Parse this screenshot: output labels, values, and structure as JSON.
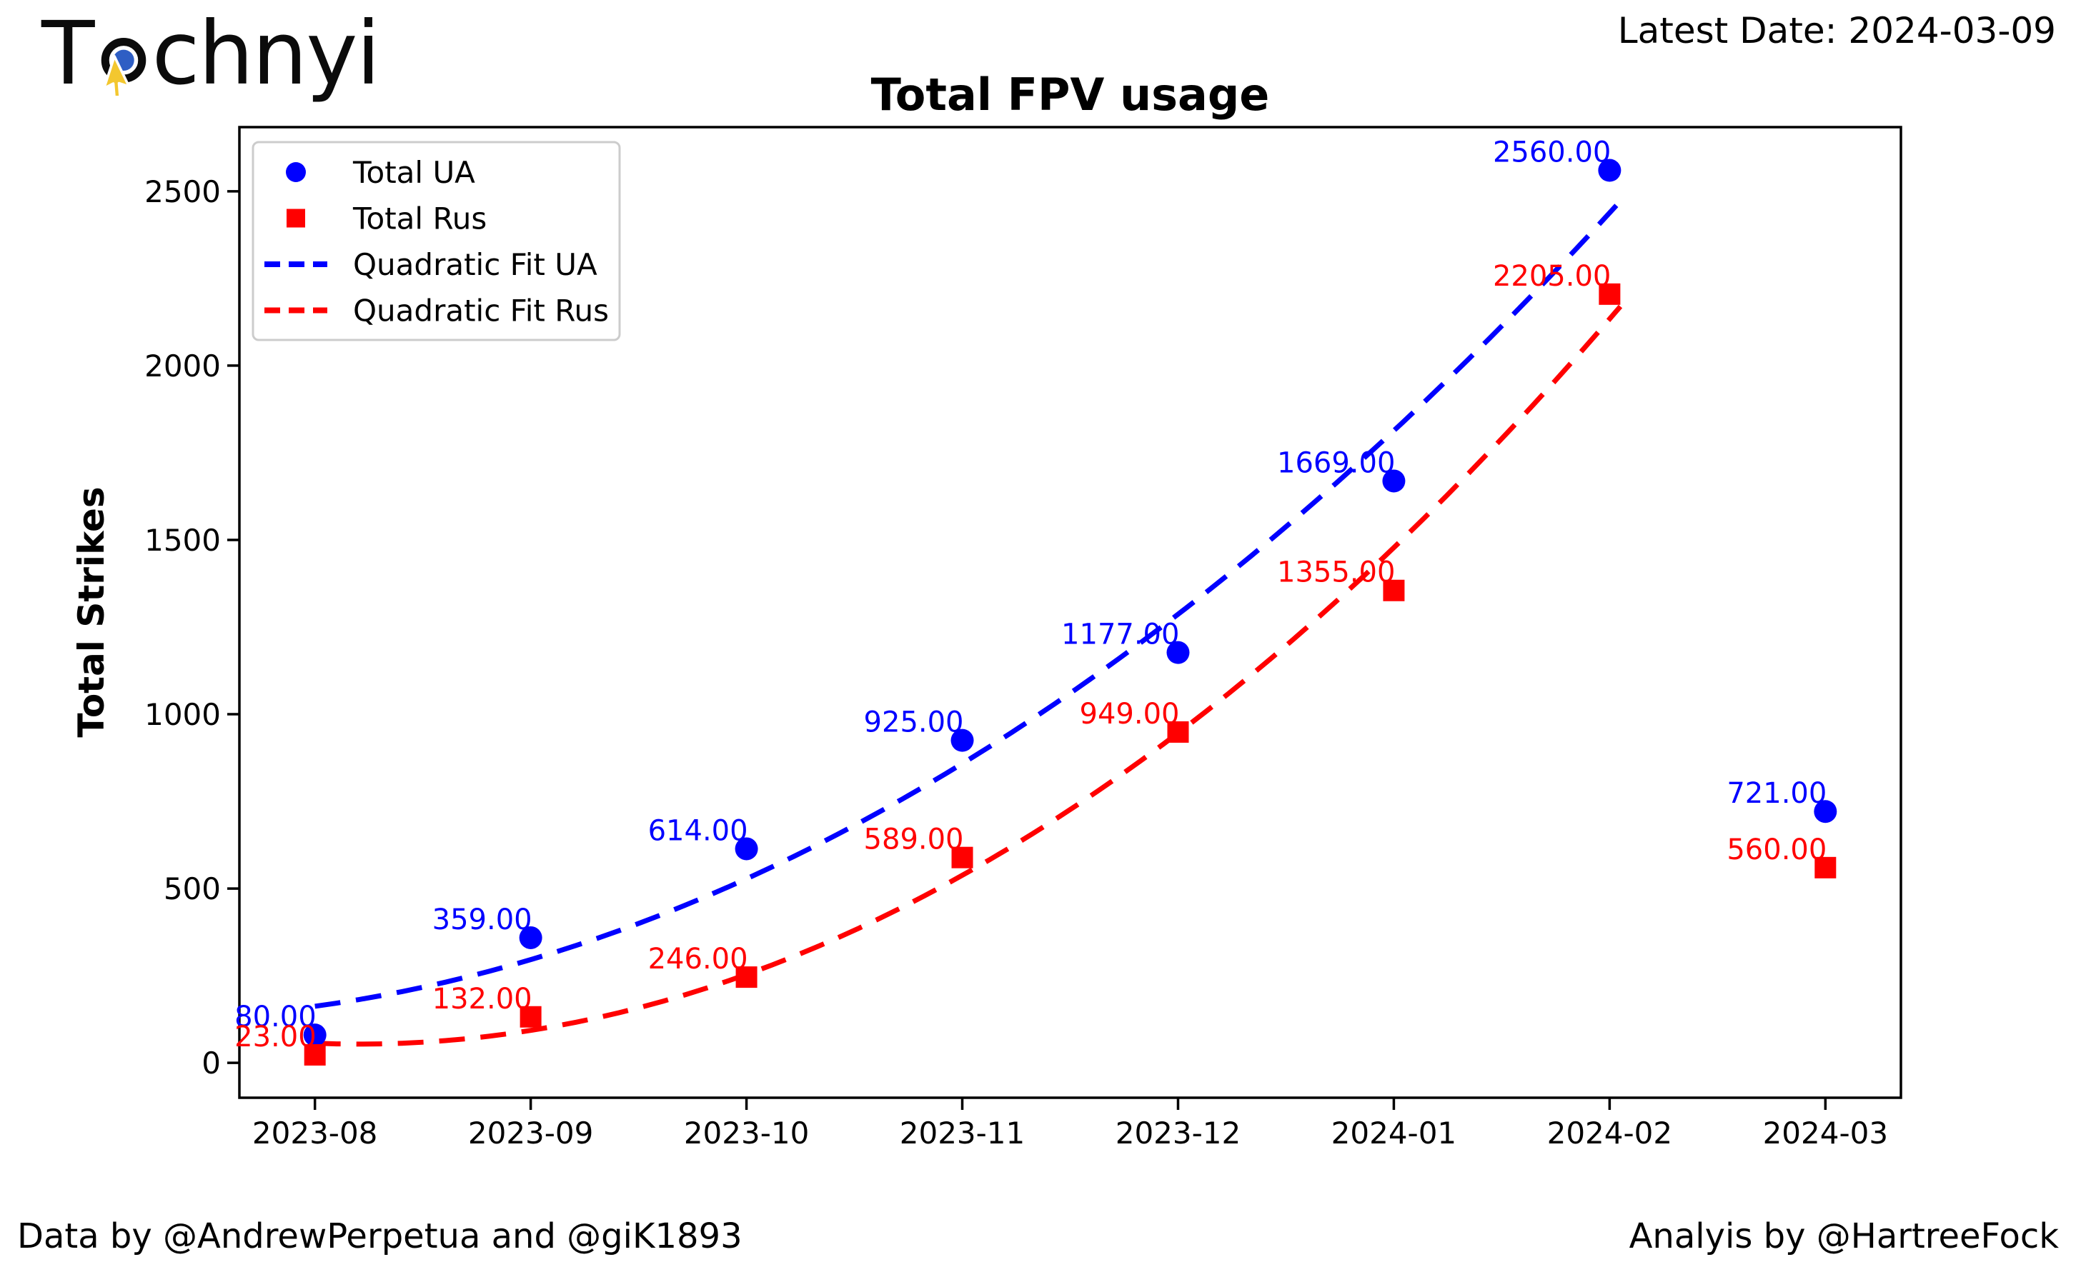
{
  "header": {
    "logo": {
      "prefix": "T",
      "suffix": "chnyi"
    },
    "latest_date_label": "Latest Date: 2024-03-09"
  },
  "chart_data": {
    "type": "scatter",
    "title": "Total FPV usage",
    "ylabel": "Total Strikes",
    "xlabel": "",
    "categories": [
      "2023-08",
      "2023-09",
      "2023-10",
      "2023-11",
      "2023-12",
      "2024-01",
      "2024-02",
      "2024-03"
    ],
    "series": [
      {
        "name": "Total UA",
        "color": "#0000ff",
        "marker": "circle",
        "values": [
          80,
          359,
          614,
          925,
          1177,
          1669,
          2560,
          721
        ]
      },
      {
        "name": "Total Rus",
        "color": "#ff0000",
        "marker": "square",
        "values": [
          23,
          132,
          246,
          589,
          949,
          1355,
          2205,
          560
        ]
      }
    ],
    "fit_lines": [
      {
        "name": "Quadratic Fit UA",
        "color": "#0000ff",
        "quadratic_coeffs": [
          49.1,
          84.7,
          162.3
        ],
        "month_range": [
          0,
          6.05
        ]
      },
      {
        "name": "Quadratic Fit Rus",
        "color": "#ff0000",
        "quadratic_coeffs": [
          61.9,
          -25.2,
          56.4
        ],
        "month_range": [
          0,
          6.05
        ]
      }
    ],
    "yticks": [
      0,
      500,
      1000,
      1500,
      2000,
      2500
    ],
    "ylim": [
      -100,
      2684
    ],
    "xlim_months": [
      -0.35,
      7.35
    ],
    "grid": false,
    "legend_position": "upper left",
    "point_label_decimals": 2
  },
  "footer": {
    "credit_left": "Data by @AndrewPerpetua and @giK1893",
    "credit_right": "Analyis by @HartreeFock"
  }
}
